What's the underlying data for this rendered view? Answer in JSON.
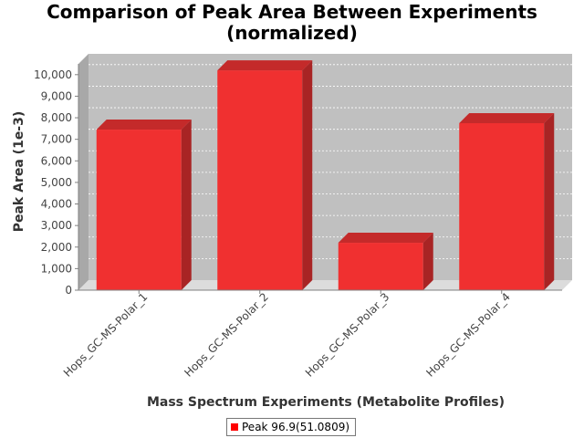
{
  "chart_data": {
    "type": "bar",
    "title_lines": [
      "Comparison of Peak Area Between Experiments",
      "(normalized)"
    ],
    "xlabel": "Mass Spectrum Experiments (Metabolite Profiles)",
    "ylabel": "Peak Area (1e-3)",
    "categories": [
      "Hops_GC-MS-Polar_1",
      "Hops_GC-MS-Polar_2",
      "Hops_GC-MS-Polar_3",
      "Hops_GC-MS-Polar_4"
    ],
    "series": [
      {
        "name": "Peak 96.9(51.0809)",
        "values": [
          7450,
          10200,
          2200,
          7750
        ],
        "color": "#f03030"
      }
    ],
    "ylim": [
      0,
      10500
    ],
    "yticks": [
      0,
      1000,
      2000,
      3000,
      4000,
      5000,
      6000,
      7000,
      8000,
      9000,
      10000
    ],
    "ytick_labels": [
      "0",
      "1,000",
      "2,000",
      "3,000",
      "4,000",
      "5,000",
      "6,000",
      "7,000",
      "8,000",
      "9,000",
      "10,000"
    ],
    "grid": true,
    "three_d": true,
    "legend_position": "bottom"
  }
}
